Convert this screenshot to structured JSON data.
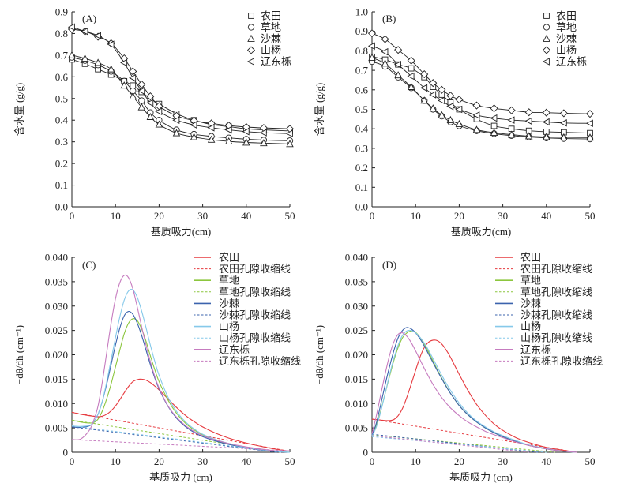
{
  "chart_data": [
    {
      "id": "A",
      "type": "line",
      "panel_label": "(A)",
      "xlabel": "基质吸力(cm)",
      "ylabel": "含水量 (g/g)",
      "xlim": [
        0,
        50
      ],
      "ylim": [
        0,
        0.9
      ],
      "xticks": [
        0,
        10,
        20,
        30,
        40,
        50
      ],
      "xtick_labels": [
        "0",
        "10",
        "20",
        "30",
        "40",
        "50"
      ],
      "yticks": [
        0,
        0.1,
        0.2,
        0.3,
        0.4,
        0.5,
        0.6,
        0.7,
        0.8,
        0.9
      ],
      "ytick_labels": [
        "0.0",
        "0.1",
        "0.2",
        "0.3",
        "0.4",
        "0.5",
        "0.6",
        "0.7",
        "0.8",
        "0.9"
      ],
      "legend_position": "top-right",
      "x": [
        0,
        3,
        6,
        9,
        12,
        14,
        16,
        18,
        20,
        24,
        28,
        32,
        36,
        40,
        44,
        50
      ],
      "series": [
        {
          "name": "农田",
          "marker": "square",
          "values": [
            0.68,
            0.66,
            0.635,
            0.61,
            0.58,
            0.56,
            0.53,
            0.5,
            0.475,
            0.43,
            0.4,
            0.38,
            0.37,
            0.36,
            0.355,
            0.35
          ]
        },
        {
          "name": "草地",
          "marker": "circle",
          "values": [
            0.69,
            0.675,
            0.655,
            0.625,
            0.58,
            0.535,
            0.49,
            0.435,
            0.4,
            0.355,
            0.335,
            0.325,
            0.318,
            0.312,
            0.308,
            0.305
          ]
        },
        {
          "name": "沙棘",
          "marker": "triangle-up",
          "values": [
            0.7,
            0.685,
            0.665,
            0.635,
            0.56,
            0.51,
            0.46,
            0.415,
            0.38,
            0.34,
            0.322,
            0.31,
            0.302,
            0.297,
            0.294,
            0.29
          ]
        },
        {
          "name": "山杨",
          "marker": "diamond",
          "values": [
            0.82,
            0.81,
            0.785,
            0.755,
            0.685,
            0.625,
            0.565,
            0.51,
            0.465,
            0.42,
            0.398,
            0.385,
            0.375,
            0.368,
            0.364,
            0.36
          ]
        },
        {
          "name": "辽东栎",
          "marker": "triangle-left",
          "values": [
            0.83,
            0.81,
            0.79,
            0.75,
            0.665,
            0.595,
            0.535,
            0.48,
            0.44,
            0.4,
            0.378,
            0.365,
            0.355,
            0.347,
            0.342,
            0.338
          ]
        }
      ]
    },
    {
      "id": "B",
      "type": "line",
      "panel_label": "(B)",
      "xlabel": "基质吸力(cm)",
      "ylabel": "含水量 (g/g)",
      "xlim": [
        0,
        50
      ],
      "ylim": [
        0,
        1.0
      ],
      "xticks": [
        0,
        10,
        20,
        30,
        40,
        50
      ],
      "xtick_labels": [
        "0",
        "10",
        "20",
        "30",
        "40",
        "50"
      ],
      "yticks": [
        0,
        0.1,
        0.2,
        0.3,
        0.4,
        0.5,
        0.6,
        0.7,
        0.8,
        0.9,
        1.0
      ],
      "ytick_labels": [
        "0.0",
        "0.1",
        "0.2",
        "0.3",
        "0.4",
        "0.5",
        "0.6",
        "0.7",
        "0.8",
        "0.9",
        "1.0"
      ],
      "legend_position": "top-right",
      "x": [
        0,
        3,
        6,
        9,
        12,
        14,
        16,
        18,
        20,
        24,
        28,
        32,
        36,
        40,
        44,
        50
      ],
      "series": [
        {
          "name": "农田",
          "marker": "square",
          "values": [
            0.77,
            0.755,
            0.73,
            0.71,
            0.665,
            0.615,
            0.575,
            0.535,
            0.5,
            0.45,
            0.415,
            0.4,
            0.39,
            0.385,
            0.382,
            0.378
          ]
        },
        {
          "name": "草地",
          "marker": "circle",
          "values": [
            0.745,
            0.72,
            0.665,
            0.61,
            0.545,
            0.5,
            0.465,
            0.435,
            0.415,
            0.39,
            0.375,
            0.365,
            0.358,
            0.353,
            0.35,
            0.348
          ]
        },
        {
          "name": "沙棘",
          "marker": "triangle-up",
          "values": [
            0.765,
            0.735,
            0.675,
            0.615,
            0.545,
            0.505,
            0.47,
            0.445,
            0.425,
            0.395,
            0.38,
            0.37,
            0.362,
            0.358,
            0.356,
            0.355
          ]
        },
        {
          "name": "山杨",
          "marker": "diamond",
          "values": [
            0.89,
            0.86,
            0.805,
            0.75,
            0.68,
            0.635,
            0.6,
            0.57,
            0.55,
            0.52,
            0.505,
            0.495,
            0.485,
            0.483,
            0.48,
            0.477
          ]
        },
        {
          "name": "辽东栎",
          "marker": "triangle-left",
          "values": [
            0.825,
            0.795,
            0.73,
            0.67,
            0.61,
            0.575,
            0.545,
            0.515,
            0.5,
            0.47,
            0.455,
            0.445,
            0.44,
            0.435,
            0.43,
            0.428
          ]
        }
      ]
    },
    {
      "id": "C",
      "type": "line",
      "panel_label": "(C)",
      "xlabel": "基质吸力 (cm)",
      "ylabel": "−dθ/dh (cm⁻¹)",
      "xlim": [
        0,
        50
      ],
      "ylim": [
        0,
        0.04
      ],
      "xticks": [
        0,
        10,
        20,
        30,
        40,
        50
      ],
      "xtick_labels": [
        "0",
        "10",
        "20",
        "30",
        "40",
        "50"
      ],
      "yticks": [
        0,
        0.005,
        0.01,
        0.015,
        0.02,
        0.025,
        0.03,
        0.035,
        0.04
      ],
      "ytick_labels": [
        "0",
        "0.005",
        "0.010",
        "0.015",
        "0.020",
        "0.025",
        "0.030",
        "0.035",
        "0.040"
      ],
      "legend_position": "top-right",
      "x": [
        0,
        2,
        4,
        5,
        6,
        7,
        8,
        9,
        10,
        11,
        12,
        13,
        14,
        15,
        16,
        17,
        18,
        19,
        20,
        22,
        24,
        26,
        28,
        30,
        33,
        36,
        40,
        44,
        47,
        50
      ],
      "series": [
        {
          "name": "农田",
          "color": "#e63a3f",
          "style": "solid",
          "values": [
            0.0082,
            0.0078,
            0.0075,
            0.0074,
            0.0073,
            0.0074,
            0.0078,
            0.0085,
            0.0095,
            0.0108,
            0.0122,
            0.0135,
            0.0145,
            0.0149,
            0.015,
            0.0148,
            0.0143,
            0.0136,
            0.0128,
            0.011,
            0.0092,
            0.0076,
            0.0063,
            0.0052,
            0.0039,
            0.0029,
            0.0019,
            0.0011,
            0.0006,
            0.0002
          ]
        },
        {
          "name": "农田孔隙收缩线",
          "color": "#e63a3f",
          "style": "dashed",
          "line": [
            [
              0,
              0.0082
            ],
            [
              50,
              0.0002
            ]
          ]
        },
        {
          "name": "草地",
          "color": "#8cc63e",
          "style": "solid",
          "values": [
            0.0066,
            0.0062,
            0.006,
            0.0061,
            0.0068,
            0.0085,
            0.011,
            0.014,
            0.0175,
            0.021,
            0.0243,
            0.0265,
            0.0274,
            0.027,
            0.0253,
            0.0228,
            0.0198,
            0.017,
            0.0145,
            0.0108,
            0.008,
            0.006,
            0.0046,
            0.0036,
            0.0025,
            0.0017,
            0.001,
            0.0005,
            0.0002,
            0.0
          ]
        },
        {
          "name": "草地孔隙收缩线",
          "color": "#8cc63e",
          "style": "dashed",
          "line": [
            [
              0,
              0.0066
            ],
            [
              48,
              0.0
            ]
          ]
        },
        {
          "name": "沙棘",
          "color": "#3b63ad",
          "style": "solid",
          "values": [
            0.0052,
            0.0051,
            0.0054,
            0.0062,
            0.0078,
            0.0105,
            0.014,
            0.018,
            0.022,
            0.0255,
            0.028,
            0.0289,
            0.0283,
            0.0265,
            0.024,
            0.021,
            0.018,
            0.0153,
            0.013,
            0.0095,
            0.007,
            0.0053,
            0.0041,
            0.0032,
            0.0023,
            0.0016,
            0.0009,
            0.0004,
            0.0001,
            0.0
          ]
        },
        {
          "name": "沙棘孔隙收缩线",
          "color": "#3b63ad",
          "style": "dashed",
          "line": [
            [
              0,
              0.0052
            ],
            [
              47,
              0.0
            ]
          ]
        },
        {
          "name": "山杨",
          "color": "#86c9ea",
          "style": "solid",
          "values": [
            0.0054,
            0.0053,
            0.0055,
            0.0062,
            0.0078,
            0.0105,
            0.0145,
            0.019,
            0.0235,
            0.0278,
            0.0312,
            0.0331,
            0.0333,
            0.0318,
            0.029,
            0.0256,
            0.022,
            0.0187,
            0.0158,
            0.0114,
            0.0084,
            0.0063,
            0.0048,
            0.0037,
            0.0026,
            0.0018,
            0.001,
            0.0005,
            0.0002,
            0.0
          ]
        },
        {
          "name": "山杨孔隙收缩线",
          "color": "#86c9ea",
          "style": "dashed",
          "line": [
            [
              0,
              0.0054
            ],
            [
              48,
              0.0
            ]
          ]
        },
        {
          "name": "辽东栎",
          "color": "#c67bbf",
          "style": "solid",
          "values": [
            0.0026,
            0.0027,
            0.0045,
            0.0065,
            0.0095,
            0.0145,
            0.0205,
            0.0265,
            0.0315,
            0.0348,
            0.0363,
            0.0358,
            0.0335,
            0.0298,
            0.0258,
            0.022,
            0.0186,
            0.0156,
            0.0132,
            0.0096,
            0.0072,
            0.0055,
            0.0043,
            0.0034,
            0.0025,
            0.0018,
            0.0011,
            0.0006,
            0.0003,
            0.0003
          ]
        },
        {
          "name": "辽东栎孔隙收缩线",
          "color": "#c67bbf",
          "style": "dashed",
          "line": [
            [
              0,
              0.0026
            ],
            [
              50,
              0.0003
            ]
          ]
        }
      ]
    },
    {
      "id": "D",
      "type": "line",
      "panel_label": "(D)",
      "xlabel": "基质吸力 (cm)",
      "ylabel": "−dθ/dh (cm⁻¹)",
      "xlim": [
        0,
        50
      ],
      "ylim": [
        0,
        0.04
      ],
      "xticks": [
        0,
        10,
        20,
        30,
        40,
        50
      ],
      "xtick_labels": [
        "0",
        "10",
        "20",
        "30",
        "40",
        "50"
      ],
      "yticks": [
        0,
        0.005,
        0.01,
        0.015,
        0.02,
        0.025,
        0.03,
        0.035,
        0.04
      ],
      "ytick_labels": [
        "0",
        "0.005",
        "0.010",
        "0.015",
        "0.020",
        "0.025",
        "0.030",
        "0.035",
        "0.040"
      ],
      "legend_position": "top-right",
      "x": [
        0,
        1,
        2,
        3,
        4,
        5,
        6,
        7,
        8,
        9,
        10,
        11,
        12,
        13,
        14,
        15,
        16,
        17,
        18,
        20,
        22,
        24,
        26,
        28,
        30,
        33,
        36,
        40,
        44,
        47
      ],
      "series": [
        {
          "name": "农田",
          "color": "#e63a3f",
          "style": "solid",
          "values": [
            0.0068,
            0.0067,
            0.0066,
            0.0065,
            0.0065,
            0.0067,
            0.0075,
            0.009,
            0.0113,
            0.014,
            0.0168,
            0.0195,
            0.0215,
            0.0226,
            0.023,
            0.0229,
            0.0222,
            0.021,
            0.0195,
            0.016,
            0.0127,
            0.0098,
            0.0076,
            0.0058,
            0.0045,
            0.003,
            0.002,
            0.001,
            0.0004,
            0.0
          ]
        },
        {
          "name": "农田孔隙收缩线",
          "color": "#e63a3f",
          "style": "dashed",
          "line": [
            [
              0,
              0.0068
            ],
            [
              47,
              0.0
            ]
          ]
        },
        {
          "name": "草地",
          "color": "#8cc63e",
          "style": "solid",
          "values": [
            0.0035,
            0.0055,
            0.0085,
            0.012,
            0.0155,
            0.0188,
            0.0215,
            0.0235,
            0.0245,
            0.0249,
            0.0246,
            0.0236,
            0.0222,
            0.0205,
            0.0187,
            0.0169,
            0.0152,
            0.0136,
            0.0121,
            0.0096,
            0.0077,
            0.0062,
            0.005,
            0.004,
            0.0032,
            0.0022,
            0.0014,
            0.0007,
            0.0002,
            0.0
          ]
        },
        {
          "name": "草地孔隙收缩线",
          "color": "#8cc63e",
          "style": "dashed",
          "line": [
            [
              0,
              0.0036
            ],
            [
              42,
              0.0
            ]
          ]
        },
        {
          "name": "沙棘",
          "color": "#3b63ad",
          "style": "solid",
          "values": [
            0.0035,
            0.006,
            0.0098,
            0.0138,
            0.0175,
            0.0208,
            0.0235,
            0.025,
            0.0256,
            0.0253,
            0.0245,
            0.0233,
            0.0218,
            0.0201,
            0.0184,
            0.0167,
            0.0151,
            0.0135,
            0.0121,
            0.0096,
            0.0077,
            0.0062,
            0.005,
            0.004,
            0.0032,
            0.0022,
            0.0014,
            0.0007,
            0.0002,
            0.0
          ]
        },
        {
          "name": "沙棘孔隙收缩线",
          "color": "#3b63ad",
          "style": "dashed",
          "line": [
            [
              0,
              0.0037
            ],
            [
              38,
              0.0
            ]
          ]
        },
        {
          "name": "山杨",
          "color": "#86c9ea",
          "style": "solid",
          "values": [
            0.0033,
            0.0052,
            0.0083,
            0.012,
            0.0158,
            0.0192,
            0.022,
            0.024,
            0.0249,
            0.025,
            0.0245,
            0.0236,
            0.0224,
            0.0209,
            0.0192,
            0.0175,
            0.0158,
            0.0142,
            0.0127,
            0.0101,
            0.008,
            0.0064,
            0.0052,
            0.0042,
            0.0034,
            0.0024,
            0.0015,
            0.0008,
            0.0002,
            0.0
          ]
        },
        {
          "name": "山杨孔隙收缩线",
          "color": "#86c9ea",
          "style": "dashed",
          "line": [
            [
              0,
              0.0032
            ],
            [
              40,
              0.0
            ]
          ]
        },
        {
          "name": "辽东栎",
          "color": "#c67bbf",
          "style": "solid",
          "values": [
            0.0038,
            0.0075,
            0.0118,
            0.016,
            0.0198,
            0.0226,
            0.0242,
            0.0245,
            0.0238,
            0.0225,
            0.0208,
            0.019,
            0.0172,
            0.0155,
            0.0139,
            0.0125,
            0.0112,
            0.0101,
            0.0091,
            0.0075,
            0.0062,
            0.0052,
            0.0043,
            0.0036,
            0.003,
            0.0021,
            0.0014,
            0.0007,
            0.0002,
            0.0
          ]
        },
        {
          "name": "辽东栎孔隙收缩线",
          "color": "#c67bbf",
          "style": "dashed",
          "line": [
            [
              0,
              0.0034
            ],
            [
              36,
              0.0
            ]
          ]
        }
      ]
    }
  ]
}
